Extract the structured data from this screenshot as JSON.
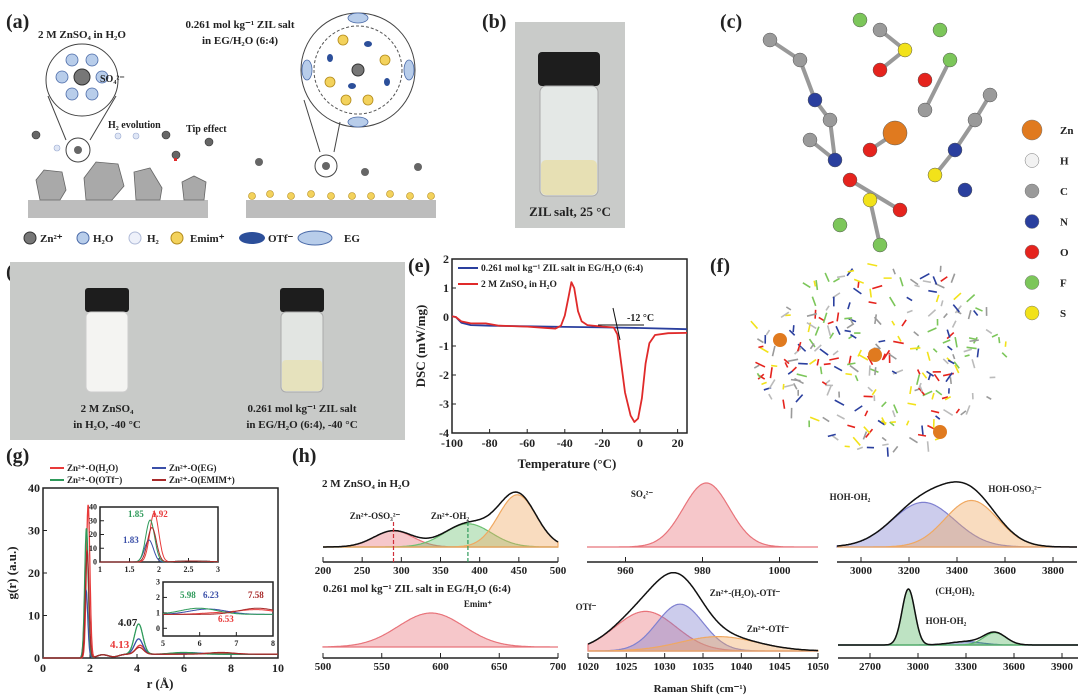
{
  "panels": {
    "a": {
      "letter": "(a)",
      "left_title": "2 M ZnSO₄ in H₂O",
      "right_title_1": "0.261 mol kg⁻¹ ZIL salt",
      "right_title_2": "in EG/H₂O (6:4)",
      "so4_label": "SO₄²⁻",
      "h2_evolution": "H₂ evolution",
      "tip_effect": "Tip effect",
      "legend": [
        "Zn²⁺",
        "H₂O",
        "H₂",
        "Emim⁺",
        "OTf⁻",
        "EG"
      ]
    },
    "b": {
      "letter": "(b)",
      "caption": "ZIL salt, 25 °C"
    },
    "c": {
      "letter": "(c)",
      "legend": [
        {
          "label": "Zn",
          "color": "#e07a1f"
        },
        {
          "label": "H",
          "color": "#f2f2f2"
        },
        {
          "label": "C",
          "color": "#9a9a9a"
        },
        {
          "label": "N",
          "color": "#2a3f9e"
        },
        {
          "label": "O",
          "color": "#e5231d"
        },
        {
          "label": "F",
          "color": "#7cc65a"
        },
        {
          "label": "S",
          "color": "#f2e21a"
        }
      ]
    },
    "d": {
      "letter": "(d)",
      "left_caption_1": "2 M ZnSO₄",
      "left_caption_2": "in H₂O, -40 °C",
      "right_caption_1": "0.261 mol kg⁻¹ ZIL salt",
      "right_caption_2": "in EG/H₂O (6:4), -40 °C"
    },
    "e": {
      "letter": "(e)",
      "annotation": "-12 °C"
    },
    "f": {
      "letter": "(f)"
    },
    "g": {
      "letter": "(g)"
    },
    "h": {
      "letter": "(h)",
      "title_top": "2 M ZnSO₄  in H₂O",
      "title_bottom": "0.261 mol kg⁻¹ ZIL salt in EG/H₂O (6:4)",
      "xlabel": "Raman Shift (cm⁻¹)"
    }
  },
  "chart_data": [
    {
      "id": "e",
      "type": "line",
      "xlabel": "Temperature (°C)",
      "ylabel": "DSC (mW/mg)",
      "xlim": [
        -100,
        25
      ],
      "ylim": [
        -4,
        2
      ],
      "xticks": [
        -100,
        -80,
        -60,
        -40,
        -20,
        0,
        20
      ],
      "yticks": [
        -4,
        -3,
        -2,
        -1,
        0,
        1,
        2
      ],
      "legend_position": "top-left",
      "series": [
        {
          "name": "0.261 mol kg⁻¹ ZIL salt in EG/H₂O (6:4)",
          "color": "#2a3f9e",
          "x": [
            -100,
            -98,
            -95,
            -90,
            -80,
            -60,
            -40,
            -20,
            0,
            25
          ],
          "y": [
            0.02,
            0.0,
            -0.2,
            -0.28,
            -0.3,
            -0.32,
            -0.34,
            -0.36,
            -0.38,
            -0.42
          ]
        },
        {
          "name": "2 M ZnSO₄ in H₂O",
          "color": "#e02a2a",
          "x": [
            -100,
            -98,
            -95,
            -90,
            -82,
            -75,
            -60,
            -50,
            -45,
            -42,
            -40,
            -38,
            -36.5,
            -35,
            -33,
            -31,
            -28,
            -20,
            -14,
            -12,
            -10,
            -8,
            -5,
            -3,
            -1,
            1,
            3,
            5,
            8,
            15,
            25
          ],
          "y": [
            0.02,
            0.0,
            -0.15,
            -0.22,
            -0.22,
            -0.3,
            -0.33,
            -0.38,
            -0.4,
            -0.3,
            0.05,
            0.7,
            1.2,
            1.0,
            0.2,
            -0.15,
            -0.28,
            -0.33,
            -0.36,
            -0.6,
            -1.6,
            -2.6,
            -3.4,
            -3.62,
            -3.5,
            -2.8,
            -1.6,
            -0.9,
            -0.62,
            -0.56,
            -0.55
          ]
        }
      ]
    },
    {
      "id": "g",
      "type": "line",
      "xlabel": "r (Å)",
      "ylabel": "g(r) (a.u.)",
      "xlim": [
        0,
        10
      ],
      "ylim": [
        0,
        40
      ],
      "xticks": [
        0,
        2,
        4,
        6,
        8,
        10
      ],
      "yticks": [
        0,
        10,
        20,
        30,
        40
      ],
      "legend_position": "top",
      "series": [
        {
          "name": "Zn²⁺-O(H₂O)",
          "color": "#e83a3a",
          "peaks": [
            [
              1.92,
              36
            ],
            [
              4.13,
              2.5
            ],
            [
              6.53,
              1.1
            ],
            [
              7.58,
              1.3
            ]
          ]
        },
        {
          "name": "Zn²⁺-O(EG)",
          "color": "#3a4fa8",
          "peaks": [
            [
              1.83,
              16
            ],
            [
              4.07,
              4
            ],
            [
              6.23,
              1.35
            ]
          ]
        },
        {
          "name": "Zn²⁺-O(OTf⁻)",
          "color": "#2e9a5a",
          "peaks": [
            [
              1.85,
              30.5
            ],
            [
              4.07,
              7.5
            ],
            [
              5.98,
              1.4
            ]
          ]
        },
        {
          "name": "Zn²⁺-O(EMIM⁺)",
          "color": "#a82a2a",
          "peaks": [
            [
              1.88,
              25
            ],
            [
              4.1,
              2
            ],
            [
              7.58,
              1.4
            ]
          ]
        }
      ],
      "annotations": [
        {
          "text": "4.07",
          "color": "#222"
        },
        {
          "text": "4.13",
          "color": "#e83a3a"
        }
      ],
      "insets": [
        {
          "xlim": [
            1.0,
            3.0
          ],
          "ylim": [
            0,
            40
          ],
          "xticks": [
            1.0,
            1.5,
            2.0,
            2.5,
            3.0
          ],
          "yticks": [
            0,
            10,
            20,
            30,
            40
          ],
          "labels": [
            {
              "text": "1.85",
              "color": "#2e9a5a"
            },
            {
              "text": "1.92",
              "color": "#e83a3a"
            },
            {
              "text": "1.83",
              "color": "#3a4fa8"
            }
          ]
        },
        {
          "xlim": [
            5,
            8
          ],
          "ylim": [
            -0.5,
            3
          ],
          "xticks": [
            5,
            6,
            7,
            8
          ],
          "yticks": [
            0,
            1,
            2,
            3
          ],
          "labels": [
            {
              "text": "5.98",
              "color": "#2e9a5a"
            },
            {
              "text": "6.23",
              "color": "#3a4fa8"
            },
            {
              "text": "7.58",
              "color": "#a82a2a"
            },
            {
              "text": "6.53",
              "color": "#e83a3a"
            }
          ]
        }
      ]
    },
    {
      "id": "h",
      "type": "area",
      "xlabel": "Raman Shift (cm⁻¹)",
      "subplots": [
        {
          "xlim": [
            200,
            500
          ],
          "xticks": [
            200,
            250,
            300,
            350,
            400,
            450,
            500
          ],
          "components": [
            {
              "label": "Zn²⁺-OSO₃²⁻",
              "center": 290,
              "height": 0.28,
              "sigma": 25,
              "color": "#e8737a"
            },
            {
              "label": "Zn²⁺-OH₂",
              "center": 385,
              "height": 0.4,
              "sigma": 30,
              "color": "#6cc070"
            },
            {
              "label": "",
              "center": 448,
              "height": 0.9,
              "sigma": 24,
              "color": "#f0a860"
            }
          ]
        },
        {
          "xlim": [
            950,
            1010
          ],
          "xticks": [
            960,
            980,
            1000
          ],
          "components": [
            {
              "label": "SO₄²⁻",
              "center": 981,
              "height": 1.0,
              "sigma": 6,
              "color": "#e8737a"
            }
          ]
        },
        {
          "xlim": [
            2900,
            3900
          ],
          "xticks": [
            3000,
            3200,
            3400,
            3600,
            3800
          ],
          "components": [
            {
              "label": "HOH-OH₂",
              "center": 3260,
              "height": 0.72,
              "sigma": 130,
              "color": "#7f80d0"
            },
            {
              "label": "HOH-OSO₃²⁻",
              "center": 3460,
              "height": 0.75,
              "sigma": 110,
              "color": "#f0a860"
            }
          ]
        },
        {
          "xlim": [
            500,
            700
          ],
          "xticks": [
            500,
            550,
            600,
            650,
            700
          ],
          "components": [
            {
              "label": "Emim⁺",
              "center": 592,
              "height": 1.0,
              "sigma": 28,
              "color": "#e8737a"
            }
          ]
        },
        {
          "xlim": [
            1020,
            1050
          ],
          "xticks": [
            1020,
            1025,
            1030,
            1035,
            1040,
            1045,
            1050
          ],
          "components": [
            {
              "label": "OTf⁻",
              "center": 1027.5,
              "height": 0.55,
              "sigma": 4,
              "color": "#e8737a"
            },
            {
              "label": "Zn²⁺-(H₂O)ₓ-OTf⁻",
              "center": 1032,
              "height": 0.65,
              "sigma": 3,
              "color": "#7f80d0"
            },
            {
              "label": "Zn²⁺-OTf⁻",
              "center": 1037,
              "height": 0.2,
              "sigma": 5,
              "color": "#f0a860"
            }
          ]
        },
        {
          "xlim": [
            2500,
            4000
          ],
          "xticks": [
            2700,
            3000,
            3300,
            3600,
            3900
          ],
          "components": [
            {
              "label": "(CH₂OH)₂",
              "center": 2940,
              "height": 1.0,
              "sigma": 40,
              "color": "#5cb86a"
            },
            {
              "label": "HOH-OH₂",
              "center": 3300,
              "height": 0.06,
              "sigma": 100,
              "color": "#4a6ab0"
            },
            {
              "label": "",
              "center": 3480,
              "height": 0.22,
              "sigma": 70,
              "color": "#5cb86a"
            }
          ]
        }
      ]
    }
  ]
}
